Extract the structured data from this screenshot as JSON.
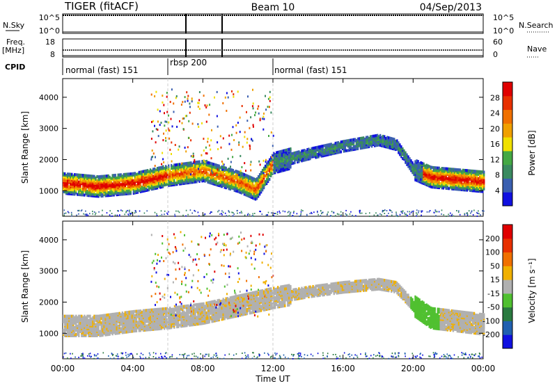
{
  "header": {
    "radar": "TIGER (fitACF)",
    "beam": "Beam 10",
    "date": "04/Sep/2013"
  },
  "top_panels": {
    "nsky_label": "N.Sky",
    "nsearch_label": "N.Search",
    "freq_label": "Freq.",
    "freq_unit": "[MHz]",
    "nave_label": "Nave",
    "cpid_label": "CPID",
    "nsky_ticks": [
      "10^5",
      "10^0"
    ],
    "nsearch_ticks": [
      "10^5",
      "10^0"
    ],
    "freq_ticks": [
      "18",
      "8"
    ],
    "nave_ticks": [
      "60",
      "0"
    ]
  },
  "cpid": {
    "segments": [
      {
        "label": "normal (fast) 151",
        "start": 0,
        "end": 6
      },
      {
        "label": "rbsp 200",
        "start": 6,
        "end": 12
      },
      {
        "label": "normal (fast) 151",
        "start": 12,
        "end": 24
      }
    ]
  },
  "chart_data": [
    {
      "type": "heatmap",
      "title": "",
      "xlabel": "Time UT",
      "ylabel": "Slant Range [km]",
      "xlim": [
        0,
        24
      ],
      "ylim": [
        180,
        4600
      ],
      "x_ticks": [
        "00:00",
        "04:00",
        "08:00",
        "12:00",
        "16:00",
        "20:00",
        "00:00"
      ],
      "y_ticks": [
        "1000",
        "2000",
        "3000",
        "4000"
      ],
      "colorbar": {
        "label": "Power [dB]",
        "ticks": [
          "28",
          "24",
          "20",
          "16",
          "12",
          "8",
          "4"
        ],
        "range": [
          0,
          30
        ],
        "colors": [
          "#1010e0",
          "#3a5fb0",
          "#3a8a60",
          "#44a844",
          "#f0e000",
          "#f0a000",
          "#f07000",
          "#e83000",
          "#e00000"
        ]
      },
      "echo_band_center_km": [
        [
          0,
          1250
        ],
        [
          2,
          1150
        ],
        [
          4,
          1250
        ],
        [
          6,
          1500
        ],
        [
          8,
          1650
        ],
        [
          10,
          1300
        ],
        [
          11,
          1050
        ],
        [
          12,
          1900
        ],
        [
          14,
          2200
        ],
        [
          16,
          2450
        ],
        [
          18,
          2650
        ],
        [
          19,
          2500
        ],
        [
          20,
          1700
        ],
        [
          21,
          1450
        ],
        [
          24,
          1300
        ]
      ]
    },
    {
      "type": "heatmap",
      "title": "",
      "xlabel": "Time UT",
      "ylabel": "Slant Range [km]",
      "xlim": [
        0,
        24
      ],
      "ylim": [
        180,
        4600
      ],
      "x_ticks": [
        "00:00",
        "04:00",
        "08:00",
        "12:00",
        "16:00",
        "20:00",
        "00:00"
      ],
      "y_ticks": [
        "1000",
        "2000",
        "3000",
        "4000"
      ],
      "colorbar": {
        "label": "Velocity [m s⁻¹]",
        "ticks": [
          "200",
          "100",
          "50",
          "15",
          "-15",
          "-50",
          "-100",
          "-200"
        ],
        "colors": [
          "#1010e0",
          "#2060b0",
          "#2a7a40",
          "#50c030",
          "#b0b0b0",
          "#f0b000",
          "#f07000",
          "#e83000",
          "#e00000"
        ]
      },
      "echo_band_center_km": [
        [
          0,
          1250
        ],
        [
          2,
          1250
        ],
        [
          4,
          1400
        ],
        [
          6,
          1500
        ],
        [
          8,
          1650
        ],
        [
          10,
          1900
        ],
        [
          12,
          2150
        ],
        [
          14,
          2350
        ],
        [
          16,
          2500
        ],
        [
          18,
          2600
        ],
        [
          19,
          2500
        ],
        [
          20,
          1900
        ],
        [
          21,
          1500
        ],
        [
          24,
          1300
        ]
      ]
    }
  ]
}
